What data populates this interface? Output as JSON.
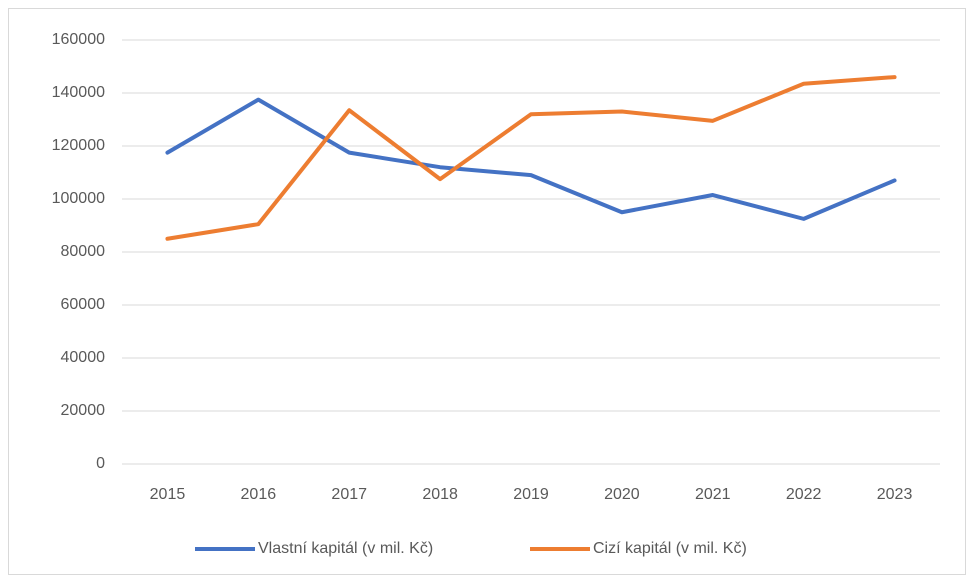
{
  "chart_data": {
    "type": "line",
    "categories": [
      "2015",
      "2016",
      "2017",
      "2018",
      "2019",
      "2020",
      "2021",
      "2022",
      "2023"
    ],
    "series": [
      {
        "name": "Vlastní kapitál (v mil. Kč)",
        "color": "#4472c4",
        "values": [
          117500,
          137500,
          117500,
          112000,
          109000,
          95000,
          101500,
          92500,
          107000
        ]
      },
      {
        "name": "Cizí kapitál (v mil. Kč)",
        "color": "#ed7d31",
        "values": [
          85000,
          90500,
          133500,
          107500,
          132000,
          133000,
          129500,
          143500,
          146000
        ]
      }
    ],
    "ylim": [
      0,
      160000
    ],
    "yticks": [
      0,
      20000,
      40000,
      60000,
      80000,
      100000,
      120000,
      140000,
      160000
    ],
    "grid": true,
    "legend": "bottom"
  }
}
